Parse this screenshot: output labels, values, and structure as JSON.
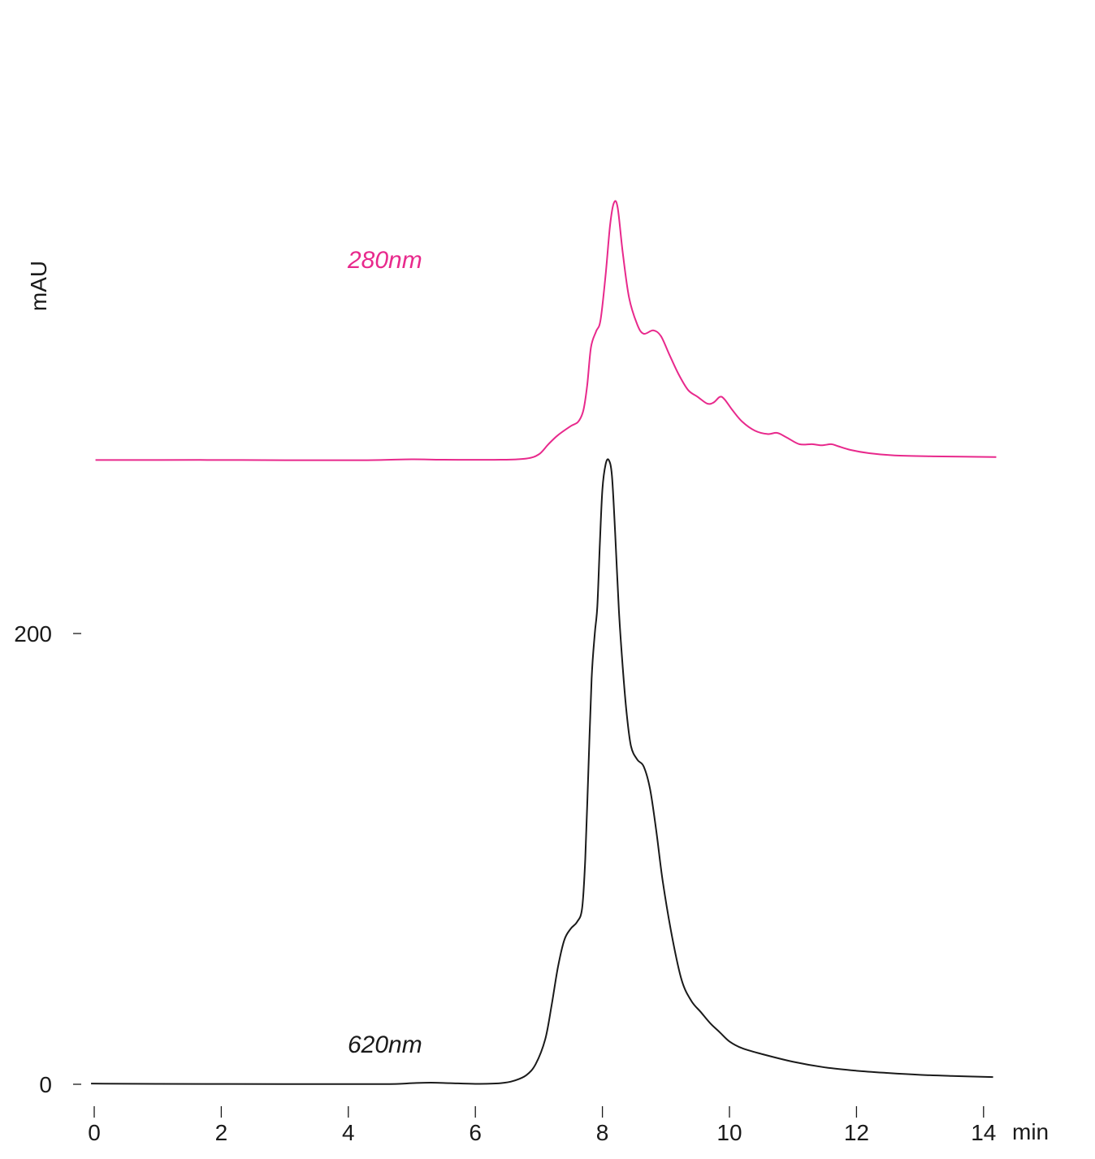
{
  "chart_data": {
    "type": "line",
    "xlabel": "min",
    "ylabel": "mAU",
    "xlim": [
      0,
      14.2
    ],
    "x_ticks": [
      0,
      2,
      4,
      6,
      8,
      10,
      12,
      14
    ],
    "y_ticks": [
      0,
      200
    ],
    "ylim": [
      0,
      280
    ],
    "grid": false,
    "legend": "none",
    "series": [
      {
        "name": "620nm",
        "color": "#1a1a1a",
        "offset": 0,
        "points": [
          [
            -0.05,
            0.3
          ],
          [
            1,
            0.2
          ],
          [
            3,
            0.1
          ],
          [
            4.6,
            0.1
          ],
          [
            5.0,
            0.5
          ],
          [
            5.3,
            0.7
          ],
          [
            5.6,
            0.5
          ],
          [
            6.0,
            0.2
          ],
          [
            6.4,
            0.5
          ],
          [
            6.6,
            1.5
          ],
          [
            6.8,
            4
          ],
          [
            6.95,
            9
          ],
          [
            7.1,
            20
          ],
          [
            7.2,
            35
          ],
          [
            7.3,
            52
          ],
          [
            7.4,
            64
          ],
          [
            7.5,
            69
          ],
          [
            7.6,
            72
          ],
          [
            7.68,
            78
          ],
          [
            7.73,
            100
          ],
          [
            7.78,
            140
          ],
          [
            7.83,
            180
          ],
          [
            7.88,
            200
          ],
          [
            7.92,
            212
          ],
          [
            7.96,
            240
          ],
          [
            8.0,
            264
          ],
          [
            8.05,
            275
          ],
          [
            8.1,
            277
          ],
          [
            8.15,
            270
          ],
          [
            8.2,
            245
          ],
          [
            8.26,
            210
          ],
          [
            8.32,
            185
          ],
          [
            8.38,
            165
          ],
          [
            8.45,
            150
          ],
          [
            8.55,
            144
          ],
          [
            8.65,
            141
          ],
          [
            8.75,
            131
          ],
          [
            8.85,
            112
          ],
          [
            8.95,
            90
          ],
          [
            9.1,
            65
          ],
          [
            9.25,
            46
          ],
          [
            9.4,
            37
          ],
          [
            9.55,
            32
          ],
          [
            9.7,
            27
          ],
          [
            9.85,
            23
          ],
          [
            10.0,
            19
          ],
          [
            10.2,
            16
          ],
          [
            10.5,
            13.5
          ],
          [
            11.0,
            10
          ],
          [
            11.5,
            7.5
          ],
          [
            12.0,
            6
          ],
          [
            12.5,
            5
          ],
          [
            13.0,
            4.2
          ],
          [
            13.5,
            3.7
          ],
          [
            14.15,
            3.2
          ]
        ]
      },
      {
        "name": "280nm",
        "color": "#e8298c",
        "offset": 277,
        "points": [
          [
            0.02,
            0
          ],
          [
            1,
            0
          ],
          [
            2,
            0
          ],
          [
            3,
            -0.1
          ],
          [
            4.3,
            -0.1
          ],
          [
            5.0,
            0.3
          ],
          [
            5.5,
            0.1
          ],
          [
            6.4,
            0.1
          ],
          [
            6.8,
            0.6
          ],
          [
            7.0,
            2.5
          ],
          [
            7.15,
            7
          ],
          [
            7.3,
            11
          ],
          [
            7.5,
            15
          ],
          [
            7.62,
            17
          ],
          [
            7.7,
            22
          ],
          [
            7.76,
            33
          ],
          [
            7.82,
            50
          ],
          [
            7.9,
            57
          ],
          [
            7.97,
            62
          ],
          [
            8.05,
            82
          ],
          [
            8.12,
            104
          ],
          [
            8.18,
            114
          ],
          [
            8.24,
            112
          ],
          [
            8.32,
            92
          ],
          [
            8.42,
            72
          ],
          [
            8.55,
            60
          ],
          [
            8.65,
            56
          ],
          [
            8.8,
            57.5
          ],
          [
            8.92,
            55
          ],
          [
            9.05,
            47
          ],
          [
            9.2,
            38
          ],
          [
            9.35,
            31
          ],
          [
            9.5,
            28
          ],
          [
            9.65,
            25
          ],
          [
            9.75,
            25.5
          ],
          [
            9.85,
            28
          ],
          [
            9.92,
            27
          ],
          [
            10.05,
            22
          ],
          [
            10.2,
            17
          ],
          [
            10.4,
            13
          ],
          [
            10.6,
            11.5
          ],
          [
            10.75,
            12
          ],
          [
            10.9,
            10
          ],
          [
            11.1,
            7
          ],
          [
            11.3,
            7
          ],
          [
            11.45,
            6.5
          ],
          [
            11.6,
            7
          ],
          [
            11.7,
            6.2
          ],
          [
            11.9,
            4.5
          ],
          [
            12.2,
            3
          ],
          [
            12.6,
            2
          ],
          [
            13.2,
            1.6
          ],
          [
            14.2,
            1.3
          ]
        ]
      }
    ],
    "annotations": [
      "280nm",
      "620nm"
    ]
  }
}
